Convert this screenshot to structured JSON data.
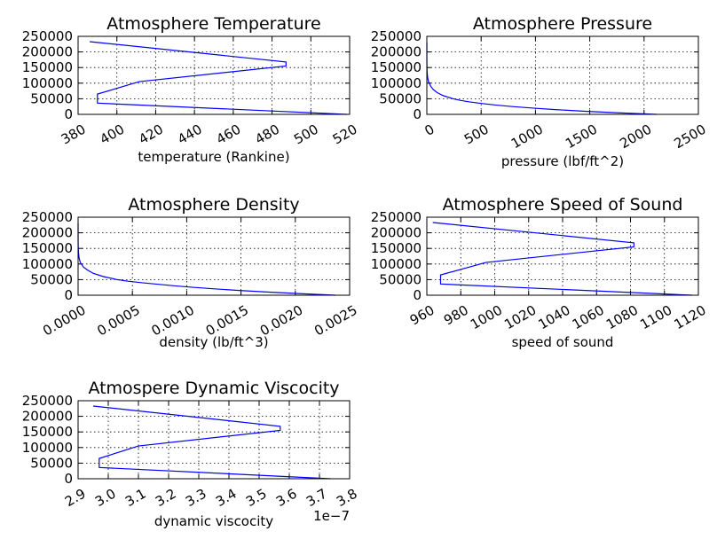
{
  "chart_data": [
    {
      "type": "line",
      "title": "Atmosphere Temperature",
      "xlabel": "temperature (Rankine)",
      "ylabel": "",
      "xlim": [
        380,
        520
      ],
      "ylim": [
        0,
        250000
      ],
      "xticks": [
        "380",
        "400",
        "420",
        "440",
        "460",
        "480",
        "500",
        "520"
      ],
      "yticks": [
        "0",
        "50000",
        "100000",
        "150000",
        "200000",
        "250000"
      ],
      "x_offset_label": "",
      "grid": true,
      "series": [
        {
          "color": "#0000ff",
          "x": [
            518.7,
            389.97,
            389.97,
            411.6,
            487.2,
            487.2,
            386.0
          ],
          "y": [
            0,
            36000,
            65000,
            105000,
            155000,
            168000,
            233000
          ]
        }
      ]
    },
    {
      "type": "line",
      "title": "Atmosphere Pressure",
      "xlabel": "pressure (lbf/ft^2)",
      "ylabel": "",
      "xlim": [
        0,
        2500
      ],
      "ylim": [
        0,
        250000
      ],
      "xticks": [
        "0",
        "500",
        "1000",
        "1500",
        "2000",
        "2500"
      ],
      "yticks": [
        "0",
        "50000",
        "100000",
        "150000",
        "200000",
        "250000"
      ],
      "x_offset_label": "",
      "grid": true,
      "series": [
        {
          "color": "#0000ff",
          "x": [
            2116,
            1760,
            1455,
            1196,
            978,
            786,
            629,
            504,
            393,
            307,
            243,
            151,
            94,
            58,
            36,
            15,
            6.5,
            2.8,
            1.2,
            0.5,
            0.2,
            0.05
          ],
          "y": [
            0,
            5000,
            10000,
            15000,
            20000,
            25000,
            30000,
            35000,
            40000,
            45000,
            50000,
            60000,
            70000,
            80000,
            90000,
            105000,
            120000,
            135000,
            150000,
            165000,
            185000,
            230000
          ]
        }
      ]
    },
    {
      "type": "line",
      "title": "Atmosphere Density",
      "xlabel": "density (lb/ft^3)",
      "ylabel": "",
      "xlim": [
        0,
        0.0025
      ],
      "ylim": [
        0,
        250000
      ],
      "xticks": [
        "0.0000",
        "0.0005",
        "0.0010",
        "0.0015",
        "0.0020",
        "0.0025"
      ],
      "yticks": [
        "0",
        "50000",
        "100000",
        "150000",
        "200000",
        "250000"
      ],
      "x_offset_label": "",
      "grid": true,
      "series": [
        {
          "color": "#0000ff",
          "x": [
            0.00237,
            0.00205,
            0.00176,
            0.0015,
            0.00127,
            0.00107,
            0.00089,
            0.00074,
            0.00059,
            0.00046,
            0.00036,
            0.00023,
            0.00014,
            9e-05,
            5e-05,
            2e-05,
            9e-06,
            4e-06,
            1.5e-06,
            6e-07,
            2e-07,
            5e-08
          ],
          "y": [
            0,
            5000,
            10000,
            15000,
            20000,
            25000,
            30000,
            35000,
            40000,
            45000,
            50000,
            60000,
            70000,
            80000,
            90000,
            105000,
            120000,
            135000,
            150000,
            165000,
            185000,
            230000
          ]
        }
      ]
    },
    {
      "type": "line",
      "title": "Atmosphere Speed of Sound",
      "xlabel": "speed of sound",
      "ylabel": "",
      "xlim": [
        960,
        1120
      ],
      "ylim": [
        0,
        250000
      ],
      "xticks": [
        "960",
        "980",
        "1000",
        "1020",
        "1040",
        "1060",
        "1080",
        "1100",
        "1120"
      ],
      "yticks": [
        "0",
        "50000",
        "100000",
        "150000",
        "200000",
        "250000"
      ],
      "x_offset_label": "",
      "grid": true,
      "series": [
        {
          "color": "#0000ff",
          "x": [
            1116.4,
            968.1,
            968.1,
            994.8,
            1082.0,
            1082.0,
            963.5
          ],
          "y": [
            0,
            36000,
            65000,
            105000,
            155000,
            168000,
            233000
          ]
        }
      ]
    },
    {
      "type": "line",
      "title": "Atmospere Dynamic Viscocity",
      "xlabel": "dynamic viscocity",
      "ylabel": "",
      "xlim": [
        2.9,
        3.8
      ],
      "ylim": [
        0,
        250000
      ],
      "xticks": [
        "2.9",
        "3.0",
        "3.1",
        "3.2",
        "3.3",
        "3.4",
        "3.5",
        "3.6",
        "3.7",
        "3.8"
      ],
      "yticks": [
        "0",
        "50000",
        "100000",
        "150000",
        "200000",
        "250000"
      ],
      "x_offset_label": "1e−7",
      "grid": true,
      "series": [
        {
          "color": "#0000ff",
          "x": [
            3.737,
            2.97,
            2.97,
            3.1,
            3.57,
            3.57,
            2.95
          ],
          "y": [
            0,
            36000,
            65000,
            105000,
            155000,
            168000,
            233000
          ]
        }
      ]
    }
  ]
}
